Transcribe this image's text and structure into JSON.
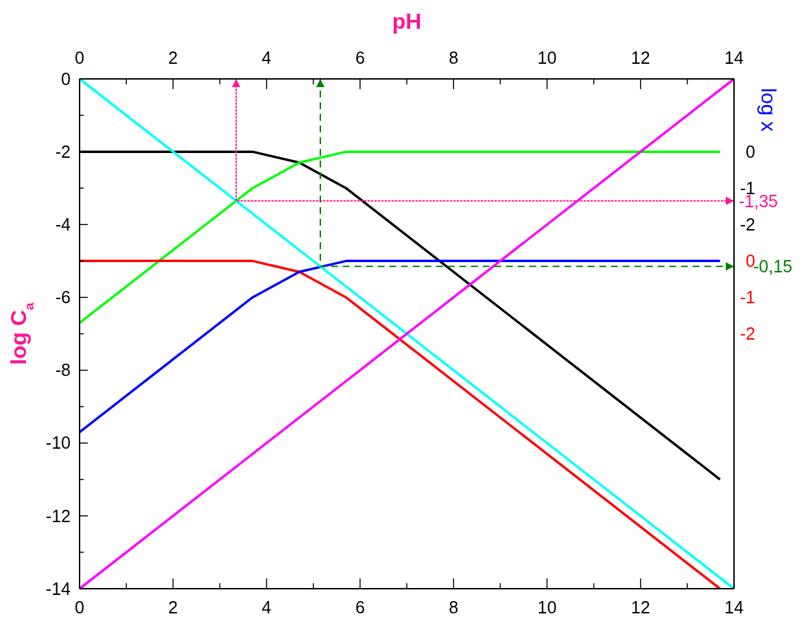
{
  "chart_data": {
    "type": "line",
    "x2label": "pH",
    "ylabel": "log C$_{a}$",
    "y2label": "log x",
    "xlim": [
      0,
      14
    ],
    "xticks": [
      0,
      {
        "value": 1,
        "label": null
      },
      2,
      {
        "value": 3,
        "label": null
      },
      4,
      {
        "value": 5,
        "label": null
      },
      6,
      {
        "value": 7,
        "label": null
      },
      8,
      {
        "value": 9,
        "label": null
      },
      10,
      {
        "value": 11,
        "label": null
      },
      12,
      {
        "value": 13,
        "label": null
      },
      14
    ],
    "x2lim": [
      0,
      14
    ],
    "x2ticks": [
      0,
      {
        "value": 1,
        "label": null
      },
      2,
      {
        "value": 3,
        "label": null
      },
      4,
      {
        "value": 5,
        "label": null
      },
      6,
      {
        "value": 7,
        "label": null
      },
      8,
      {
        "value": 9,
        "label": null
      },
      10,
      {
        "value": 11,
        "label": null
      },
      12,
      {
        "value": 13,
        "label": null
      },
      14
    ],
    "ylim": [
      -14,
      0
    ],
    "yticks": [
      -14,
      {
        "value": -13,
        "label": null
      },
      -12,
      {
        "value": -11,
        "label": null
      },
      -10,
      {
        "value": -9,
        "label": null
      },
      -8,
      {
        "value": -7,
        "label": null
      },
      -6,
      {
        "value": -5,
        "label": null
      },
      -4,
      {
        "value": -3,
        "label": null
      },
      -2,
      {
        "value": -1,
        "label": null
      },
      0
    ],
    "y2lim": [
      -12,
      2
    ],
    "y2ticks": [
      0,
      -1,
      -2
    ],
    "y3lim": [
      -9,
      5
    ],
    "y3ticks": [
      0,
      -1,
      -2
    ],
    "series": [
      {
        "color": "#000000",
        "x": [
          0,
          3.7,
          4.7,
          5.7,
          13.7
        ],
        "values": [
          -2,
          -2,
          -2.3,
          -3,
          -11
        ]
      },
      {
        "color": "#00ff00",
        "x": [
          0,
          3.7,
          4.7,
          5.7,
          13.7
        ],
        "values": [
          -6.7,
          -3,
          -2.3,
          -2,
          -2
        ]
      },
      {
        "color": "#ff0000",
        "x": [
          0,
          3.7,
          4.7,
          5.7,
          13.7
        ],
        "values": [
          -5,
          -5,
          -5.3,
          -6,
          -14
        ]
      },
      {
        "color": "#0000ff",
        "x": [
          0,
          3.7,
          4.7,
          5.7,
          13.7
        ],
        "values": [
          -9.7,
          -6,
          -5.3,
          -5,
          -5
        ]
      },
      {
        "color": "#00ffff",
        "x": [
          0,
          14
        ],
        "values": [
          0,
          -14
        ]
      },
      {
        "color": "#ff00ff",
        "x": [
          0,
          14
        ],
        "values": [
          -14,
          0
        ]
      },
      {
        "color": "#ff1493",
        "axis": "y2",
        "line_style": "dotted",
        "x": [
          3.35,
          3.35,
          14
        ],
        "values": [
          2,
          -1.35,
          -1.35
        ],
        "value_labels": [
          null,
          null,
          "-1,35"
        ]
      },
      {
        "color": "#008000",
        "axis": "y3",
        "line_style": "dashed",
        "x": [
          5.15,
          5.15,
          14
        ],
        "values": [
          5,
          -0.15,
          -0.15
        ],
        "value_labels": [
          null,
          null,
          "-0,15"
        ]
      }
    ]
  }
}
